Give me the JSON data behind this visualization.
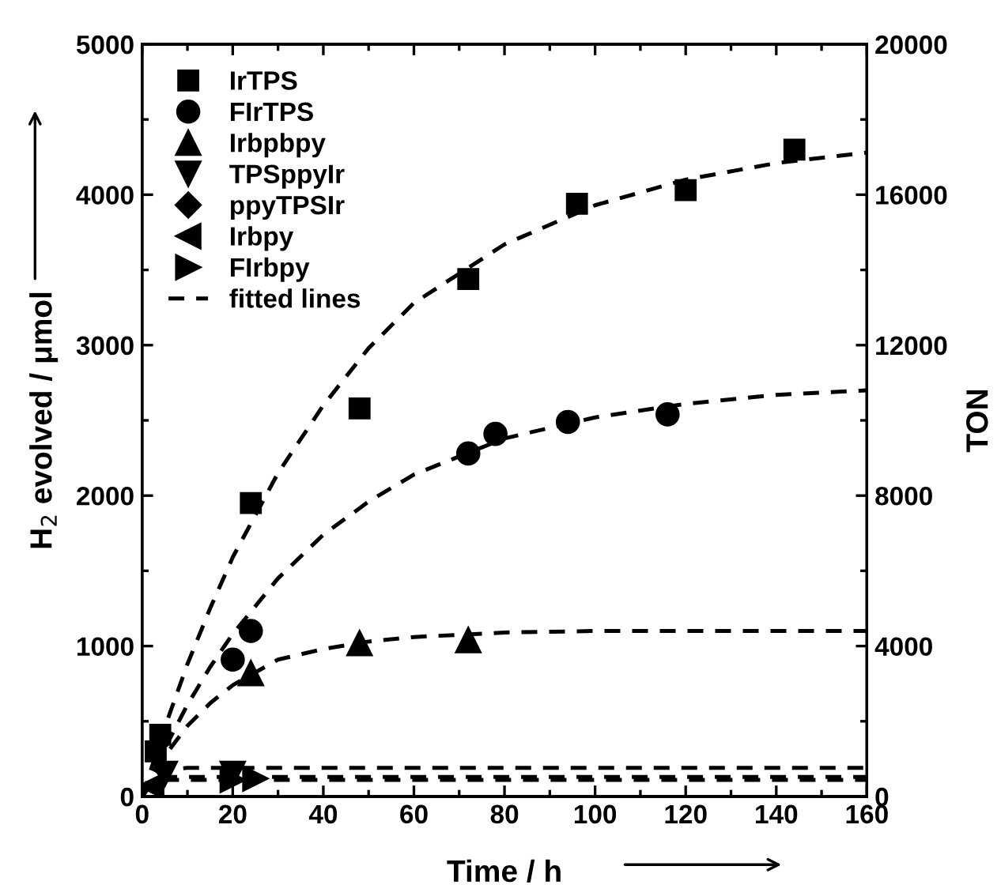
{
  "chart_data": {
    "type": "scatter",
    "xlabel": "Time / h",
    "ylabel": "H$_{2}$ evolved / μmol",
    "y2label": "TON",
    "xlim": [
      0,
      160
    ],
    "xticks": [
      0,
      20,
      40,
      60,
      80,
      100,
      120,
      140,
      160
    ],
    "ylim": [
      0,
      5000
    ],
    "yticks": [
      0,
      1000,
      2000,
      3000,
      4000,
      5000
    ],
    "y2lim": [
      0,
      20000
    ],
    "y2ticks": [
      0,
      4000,
      8000,
      12000,
      16000,
      20000
    ],
    "legend": "top left",
    "grid": false,
    "series": [
      {
        "name": "IrTPS",
        "color": "#000000",
        "marker": "square",
        "x": [
          3,
          4,
          24,
          48,
          72,
          96,
          120,
          144
        ],
        "values": [
          300,
          410,
          1950,
          2580,
          3440,
          3940,
          4030,
          4300
        ]
      },
      {
        "name": "FIrTPS",
        "color": "#000000",
        "marker": "circle",
        "x": [
          20,
          24,
          72,
          78,
          94,
          116
        ],
        "values": [
          910,
          1100,
          2280,
          2410,
          2490,
          2540
        ]
      },
      {
        "name": "Irbpbpy",
        "color": "#000000",
        "marker": "triangle",
        "x": [
          24,
          48,
          72
        ],
        "values": [
          820,
          1020,
          1040
        ]
      },
      {
        "name": "TPSppyIr",
        "color": "#000000",
        "marker": "triangle_down",
        "x": [
          5,
          20
        ],
        "values": [
          150,
          150
        ]
      },
      {
        "name": "ppyTPSIr",
        "color": "#000000",
        "marker": "diamond"
      },
      {
        "name": "Irbpy",
        "color": "#000000",
        "marker": "triangle_left",
        "x": [
          2
        ],
        "values": [
          70
        ]
      },
      {
        "name": "FIrbpy",
        "color": "#000000",
        "marker": "triangle_right",
        "x": [
          20,
          25
        ],
        "values": [
          110,
          120
        ]
      },
      {
        "name": "fitted lines",
        "type": "line",
        "line_style": "dashed",
        "color": "#000000",
        "marker": "none",
        "x": [
          0,
          5,
          10,
          15,
          20,
          30,
          40,
          50,
          60,
          80,
          100,
          120,
          140,
          160
        ],
        "values": [
          0,
          460,
          880,
          1250,
          1590,
          2150,
          2600,
          2980,
          3280,
          3670,
          3930,
          4100,
          4210,
          4280
        ]
      },
      {
        "type": "line",
        "line_style": "dashed",
        "color": "#000000",
        "marker": "none",
        "x": [
          0,
          5,
          10,
          15,
          20,
          30,
          40,
          50,
          60,
          80,
          100,
          120,
          140,
          160
        ],
        "values": [
          0,
          320,
          610,
          860,
          1080,
          1450,
          1740,
          1960,
          2140,
          2380,
          2520,
          2610,
          2670,
          2700
        ]
      },
      {
        "type": "line",
        "line_style": "dashed",
        "color": "#000000",
        "marker": "none",
        "x": [
          0,
          5,
          10,
          15,
          20,
          30,
          40,
          50,
          60,
          80,
          100,
          120,
          140,
          160
        ],
        "values": [
          0,
          270,
          470,
          620,
          740,
          910,
          980,
          1030,
          1060,
          1090,
          1100,
          1100,
          1100,
          1100
        ]
      },
      {
        "type": "line",
        "line_style": "dashed",
        "color": "#000000",
        "marker": "none",
        "x": [
          0,
          1,
          2,
          4,
          6,
          10,
          160
        ],
        "values": [
          0,
          80,
          120,
          170,
          180,
          190,
          190
        ]
      },
      {
        "type": "line",
        "line_style": "dashed",
        "color": "#000000",
        "marker": "none",
        "x": [
          0,
          1,
          2,
          4,
          6,
          10,
          160
        ],
        "values": [
          0,
          50,
          90,
          120,
          130,
          130,
          130
        ]
      },
      {
        "type": "line",
        "line_style": "dashed",
        "color": "#000000",
        "marker": "none",
        "x": [
          0,
          1,
          2,
          4,
          6,
          10,
          160
        ],
        "values": [
          0,
          40,
          80,
          100,
          110,
          110,
          110
        ]
      }
    ]
  }
}
